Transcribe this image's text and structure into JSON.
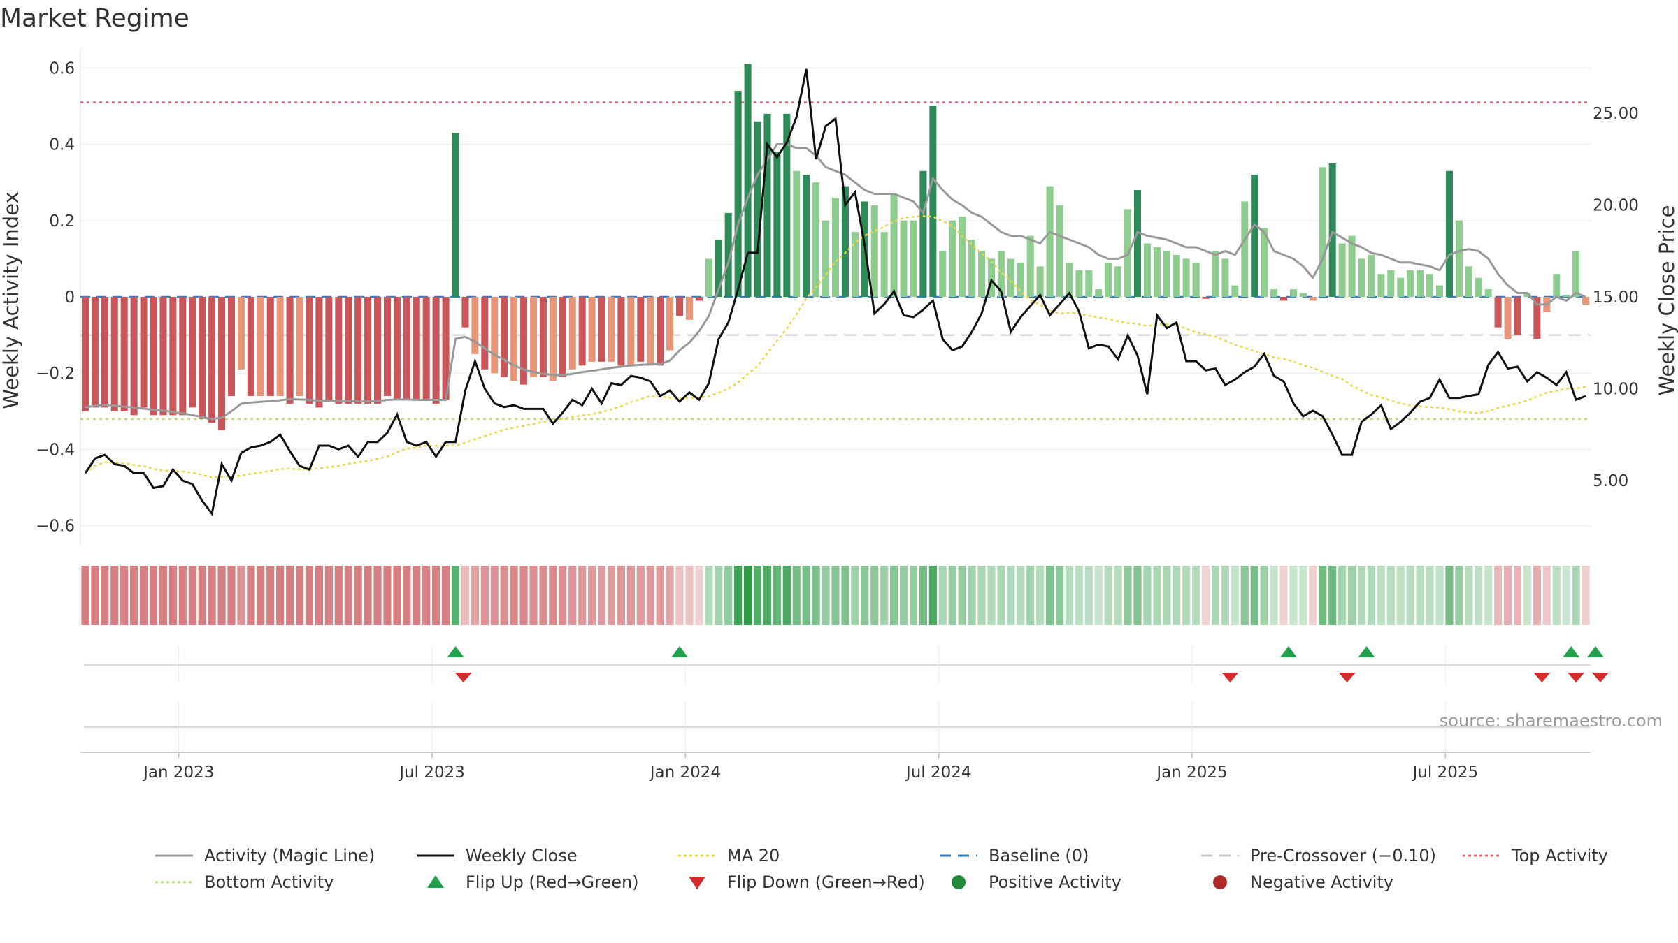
{
  "chart_data": {
    "type": "bar",
    "title": "Market Regime",
    "ylabel": "Weekly Activity Index",
    "y2label": "Weekly Close Price",
    "ylim": [
      -0.65,
      0.65
    ],
    "y2lim": [
      1.5,
      28.5
    ],
    "y_ticks": [
      0.6,
      0.4,
      0.2,
      0,
      -0.2,
      -0.4,
      -0.6
    ],
    "y_tick_labels": [
      "0.6",
      "0.4",
      "0.2",
      "0",
      "−0.2",
      "−0.4",
      "−0.6"
    ],
    "y2_ticks": [
      25,
      20,
      15,
      10,
      5
    ],
    "y2_tick_labels": [
      "25.00",
      "20.00",
      "15.00",
      "10.00",
      "5.00"
    ],
    "x_ticks": [
      "Jan 2023",
      "Jul 2023",
      "Jan 2024",
      "Jul 2024",
      "Jan 2025",
      "Jul 2025"
    ],
    "x_tick_weeks": [
      9.6,
      35.6,
      61.6,
      87.6,
      113.6,
      139.6
    ],
    "reference_lines": {
      "top_activity": 0.51,
      "bottom_activity": -0.32,
      "baseline": 0,
      "pre_crossover": -0.1
    },
    "activity": [
      -0.3,
      -0.29,
      -0.29,
      -0.3,
      -0.3,
      -0.31,
      -0.29,
      -0.31,
      -0.31,
      -0.31,
      -0.31,
      -0.29,
      -0.32,
      -0.33,
      -0.35,
      -0.26,
      -0.19,
      -0.26,
      -0.26,
      -0.26,
      -0.26,
      -0.28,
      -0.26,
      -0.28,
      -0.29,
      -0.27,
      -0.28,
      -0.28,
      -0.28,
      -0.28,
      -0.28,
      -0.26,
      -0.27,
      -0.27,
      -0.27,
      -0.27,
      -0.28,
      -0.27,
      0.43,
      -0.08,
      -0.15,
      -0.19,
      -0.2,
      -0.21,
      -0.22,
      -0.23,
      -0.21,
      -0.21,
      -0.22,
      -0.21,
      -0.19,
      -0.18,
      -0.17,
      -0.17,
      -0.17,
      -0.18,
      -0.18,
      -0.17,
      -0.18,
      -0.18,
      -0.14,
      -0.05,
      -0.06,
      -0.01,
      0.1,
      0.15,
      0.22,
      0.54,
      0.61,
      0.46,
      0.48,
      0.38,
      0.48,
      0.33,
      0.32,
      0.3,
      0.2,
      0.26,
      0.29,
      0.17,
      0.25,
      0.24,
      0.17,
      0.27,
      0.2,
      0.2,
      0.33,
      0.5,
      0.12,
      0.2,
      0.21,
      0.15,
      0.12,
      0.1,
      0.12,
      0.1,
      0.09,
      0.16,
      0.08,
      0.29,
      0.24,
      0.09,
      0.07,
      0.07,
      0.02,
      0.09,
      0.08,
      0.23,
      0.28,
      0.14,
      0.13,
      0.12,
      0.11,
      0.1,
      0.09,
      -0.005,
      0.12,
      0.1,
      0.03,
      0.25,
      0.32,
      0.18,
      0.02,
      -0.01,
      0.02,
      0.01,
      -0.01,
      0.34,
      0.35,
      0.14,
      0.16,
      0.1,
      0.11,
      0.06,
      0.07,
      0.05,
      0.07,
      0.07,
      0.06,
      0.03,
      0.33,
      0.2,
      0.08,
      0.05,
      0.02,
      -0.08,
      -0.11,
      -0.1,
      0.01,
      -0.11,
      -0.04,
      0.06,
      0.005,
      0.12,
      -0.02
    ],
    "magic_line": [
      -0.29,
      -0.285,
      -0.283,
      -0.285,
      -0.288,
      -0.29,
      -0.293,
      -0.296,
      -0.298,
      -0.302,
      -0.305,
      -0.31,
      -0.315,
      -0.32,
      -0.317,
      -0.3,
      -0.28,
      -0.277,
      -0.275,
      -0.273,
      -0.271,
      -0.268,
      -0.269,
      -0.27,
      -0.272,
      -0.272,
      -0.273,
      -0.273,
      -0.274,
      -0.274,
      -0.273,
      -0.27,
      -0.269,
      -0.269,
      -0.27,
      -0.27,
      -0.27,
      -0.27,
      -0.11,
      -0.105,
      -0.118,
      -0.135,
      -0.152,
      -0.165,
      -0.18,
      -0.19,
      -0.197,
      -0.202,
      -0.205,
      -0.205,
      -0.202,
      -0.197,
      -0.194,
      -0.19,
      -0.186,
      -0.183,
      -0.18,
      -0.178,
      -0.177,
      -0.176,
      -0.167,
      -0.14,
      -0.12,
      -0.09,
      -0.05,
      0.02,
      0.09,
      0.19,
      0.26,
      0.32,
      0.36,
      0.4,
      0.4,
      0.39,
      0.39,
      0.37,
      0.34,
      0.33,
      0.32,
      0.3,
      0.28,
      0.27,
      0.27,
      0.27,
      0.26,
      0.25,
      0.22,
      0.31,
      0.28,
      0.255,
      0.24,
      0.22,
      0.21,
      0.19,
      0.17,
      0.16,
      0.16,
      0.15,
      0.14,
      0.17,
      0.16,
      0.15,
      0.14,
      0.13,
      0.11,
      0.1,
      0.1,
      0.11,
      0.17,
      0.16,
      0.155,
      0.15,
      0.14,
      0.13,
      0.13,
      0.12,
      0.11,
      0.12,
      0.11,
      0.15,
      0.19,
      0.17,
      0.12,
      0.11,
      0.1,
      0.08,
      0.05,
      0.1,
      0.17,
      0.155,
      0.14,
      0.13,
      0.115,
      0.11,
      0.1,
      0.09,
      0.09,
      0.085,
      0.08,
      0.07,
      0.11,
      0.12,
      0.125,
      0.12,
      0.1,
      0.06,
      0.03,
      0.01,
      0.01,
      -0.02,
      -0.02,
      0.0,
      -0.01,
      0.01,
      0.0
    ],
    "weekly_close": [
      5.4,
      6.2,
      6.4,
      5.9,
      5.8,
      5.4,
      5.4,
      4.6,
      4.7,
      5.6,
      5.0,
      4.8,
      3.9,
      3.2,
      5.9,
      5.0,
      6.5,
      6.8,
      6.9,
      7.1,
      7.5,
      6.6,
      5.8,
      5.6,
      6.9,
      6.9,
      6.7,
      6.9,
      6.3,
      7.1,
      7.1,
      7.6,
      8.6,
      7.1,
      6.9,
      7.1,
      6.3,
      7.1,
      7.1,
      9.9,
      11.5,
      10.0,
      9.2,
      9.0,
      9.1,
      8.9,
      8.9,
      8.9,
      8.1,
      8.7,
      9.4,
      9.1,
      10.0,
      9.2,
      10.3,
      10.2,
      10.7,
      10.6,
      10.4,
      9.6,
      9.9,
      9.3,
      9.8,
      9.4,
      10.3,
      12.7,
      13.6,
      15.4,
      17.4,
      17.4,
      23.3,
      22.6,
      23.4,
      24.8,
      27.4,
      22.5,
      24.3,
      24.7,
      20.0,
      20.7,
      17.8,
      14.1,
      14.6,
      15.3,
      14.0,
      13.9,
      14.3,
      14.8,
      12.7,
      12.1,
      12.3,
      13.1,
      14.1,
      15.9,
      15.3,
      13.1,
      13.9,
      14.5,
      15.1,
      14.0,
      14.6,
      15.2,
      14.2,
      12.2,
      12.4,
      12.3,
      11.6,
      12.9,
      11.8,
      9.7,
      14.0,
      13.3,
      13.6,
      11.5,
      11.5,
      11.0,
      11.1,
      10.2,
      10.5,
      10.9,
      11.2,
      11.9,
      10.7,
      10.4,
      9.2,
      8.5,
      8.8,
      8.5,
      7.5,
      6.4,
      6.4,
      8.2,
      8.6,
      9.1,
      7.8,
      8.2,
      8.7,
      9.3,
      9.5,
      10.5,
      9.5,
      9.5,
      9.6,
      9.7,
      11.3,
      12.0,
      11.1,
      11.2,
      10.4,
      10.9,
      10.6,
      10.2,
      10.9,
      9.4,
      9.6
    ]
  },
  "legend": [
    {
      "key": "magic_line",
      "label": "Activity (Magic Line)",
      "kind": "line-solid",
      "color": "#999999"
    },
    {
      "key": "weekly_close",
      "label": "Weekly Close",
      "kind": "line-solid",
      "color": "#111111"
    },
    {
      "key": "ma20",
      "label": "MA 20",
      "kind": "line-dotted",
      "color": "#e8d84a"
    },
    {
      "key": "baseline",
      "label": "Baseline (0)",
      "kind": "line-dashed",
      "color": "#3b7bbf"
    },
    {
      "key": "pre_crossover",
      "label": "Pre-Crossover (−0.10)",
      "kind": "line-dashed",
      "color": "#c8c8c8"
    },
    {
      "key": "top_activity",
      "label": "Top Activity",
      "kind": "line-dotted",
      "color": "#e8637a"
    },
    {
      "key": "bottom_activity",
      "label": "Bottom Activity",
      "kind": "line-dotted",
      "color": "#b9e07a"
    },
    {
      "key": "flip_up",
      "label": "Flip Up (Red→Green)",
      "kind": "triangle-up",
      "color": "#22a04b"
    },
    {
      "key": "flip_down",
      "label": "Flip Down (Green→Red)",
      "kind": "triangle-down",
      "color": "#d42c2c"
    },
    {
      "key": "positive",
      "label": "Positive Activity",
      "kind": "dot",
      "color": "#1e8a3a"
    },
    {
      "key": "negative",
      "label": "Negative Activity",
      "kind": "dot",
      "color": "#b02a2a"
    }
  ],
  "source_text": "source: sharemaestro.com",
  "flip_up_weeks": [
    38,
    61,
    123.5,
    131.5,
    152.5,
    155
  ],
  "flip_down_weeks": [
    38.8,
    117.5,
    129.5,
    149.5,
    153,
    155.5
  ],
  "colors": {
    "neg_dark": "#c9565a",
    "neg_light": "#e8967a",
    "pos_dark": "#2e8b57",
    "pos_light": "#8fcc8f",
    "baseline": "#3b7bbf",
    "top_line": "#e8637a",
    "bottom_line": "#b9e07a",
    "ma20": "#e8d84a",
    "close": "#111111",
    "magic": "#999999"
  }
}
